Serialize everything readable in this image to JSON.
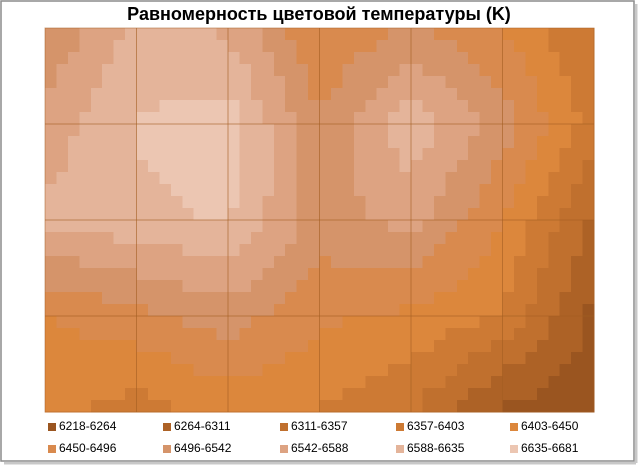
{
  "chart_data": {
    "type": "contour",
    "title": "Равномерность цветовой температуры (K)",
    "bins": [
      6218,
      6264,
      6311,
      6357,
      6403,
      6450,
      6496,
      6542,
      6588,
      6635,
      6681
    ],
    "series": [
      {
        "name": "6218-6264",
        "color": "#9a5520"
      },
      {
        "name": "6264-6311",
        "color": "#ad6226"
      },
      {
        "name": "6311-6357",
        "color": "#c0702e"
      },
      {
        "name": "6357-6403",
        "color": "#cd7a34"
      },
      {
        "name": "6403-6450",
        "color": "#dc873c"
      },
      {
        "name": "6450-6496",
        "color": "#d98a4e"
      },
      {
        "name": "6496-6542",
        "color": "#d5946a"
      },
      {
        "name": "6542-6588",
        "color": "#dda382"
      },
      {
        "name": "6588-6635",
        "color": "#e4b49a"
      },
      {
        "name": "6635-6681",
        "color": "#ecc6b2"
      }
    ],
    "z": [
      [
        6500,
        6600,
        6580,
        6450,
        6500,
        6450,
        6350
      ],
      [
        6560,
        6640,
        6660,
        6500,
        6620,
        6520,
        6380
      ],
      [
        6600,
        6620,
        6640,
        6520,
        6560,
        6450,
        6300
      ],
      [
        6450,
        6480,
        6520,
        6460,
        6440,
        6400,
        6250
      ],
      [
        6420,
        6380,
        6420,
        6400,
        6360,
        6250,
        6230
      ]
    ],
    "grid": true
  }
}
